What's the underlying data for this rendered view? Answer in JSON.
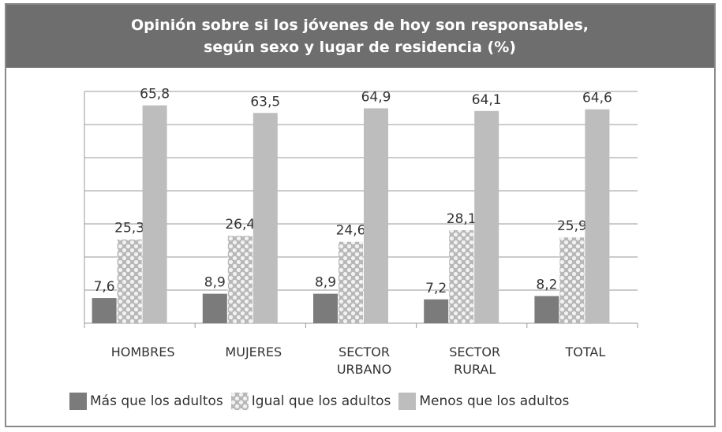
{
  "chart_data": {
    "type": "bar",
    "title": "Opinión sobre si los jóvenes de hoy son responsables, según sexo y lugar de residencia (%)",
    "categories": [
      "HOMBRES",
      "MUJERES",
      "SECTOR URBANO",
      "SECTOR RURAL",
      "TOTAL"
    ],
    "series": [
      {
        "name": "Más que los adultos",
        "color": "#7b7b7b",
        "values": [
          7.6,
          8.9,
          8.9,
          7.2,
          8.2
        ],
        "value_labels": [
          "7,6",
          "8,9",
          "8,9",
          "7,2",
          "8,2"
        ]
      },
      {
        "name": "Igual que los adultos",
        "color": "#c4c4c4",
        "fill_pattern": "dots",
        "values": [
          25.3,
          26.4,
          24.6,
          28.1,
          25.9
        ],
        "value_labels": [
          "25,3",
          "26,4",
          "24,6",
          "28,1",
          "25,9"
        ]
      },
      {
        "name": "Menos que los adultos",
        "color": "#bdbdbd",
        "values": [
          65.8,
          63.5,
          64.9,
          64.1,
          64.6
        ],
        "value_labels": [
          "65,8",
          "63,5",
          "64,9",
          "64,1",
          "64,6"
        ]
      }
    ],
    "ylim": [
      0,
      70
    ],
    "yticks": [
      0,
      10,
      20,
      30,
      40,
      50,
      60,
      70
    ],
    "grid": true,
    "legend": "bottom"
  }
}
